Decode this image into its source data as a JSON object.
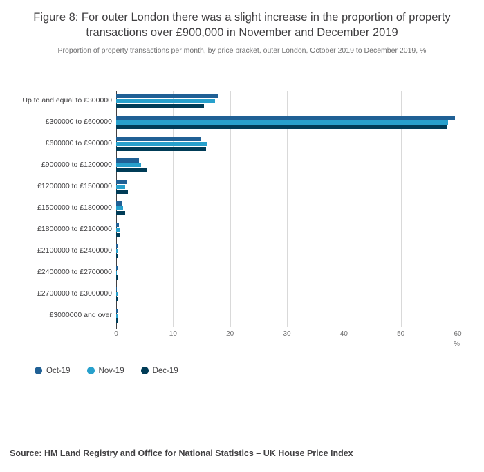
{
  "title": "Figure 8: For outer London there was a slight increase in the proportion of property transactions over £900,000 in November and December 2019",
  "subtitle": "Proportion of property transactions per month, by price bracket, outer London, October 2019 to December 2019, %",
  "source": "Source: HM Land Registry and Office for National Statistics – UK House Price Index",
  "chart_data": {
    "type": "bar",
    "orientation": "horizontal",
    "title": "Figure 8: For outer London there was a slight increase in the proportion of property transactions over £900,000 in November and December 2019",
    "subtitle": "Proportion of property transactions per month, by price bracket, outer London, October 2019 to December 2019, %",
    "categories": [
      "Up to and equal to £300000",
      "£300000 to £600000",
      "£600000 to £900000",
      "£900000 to £1200000",
      "£1200000 to £1500000",
      "£1500000 to £1800000",
      "£1800000 to £2100000",
      "£2100000 to £2400000",
      "£2400000 to £2700000",
      "£2700000 to £3000000",
      "£3000000 and over"
    ],
    "series": [
      {
        "name": "Oct-19",
        "color": "#206095",
        "values": [
          17.9,
          59.5,
          14.8,
          4.0,
          1.8,
          1.0,
          0.5,
          0.3,
          0.2,
          0.1,
          0.2
        ]
      },
      {
        "name": "Nov-19",
        "color": "#27a0cc",
        "values": [
          17.4,
          58.3,
          15.9,
          4.4,
          1.6,
          1.2,
          0.6,
          0.4,
          0.1,
          0.2,
          0.3
        ]
      },
      {
        "name": "Dec-19",
        "color": "#003c57",
        "values": [
          15.4,
          58.1,
          15.8,
          5.5,
          2.1,
          1.6,
          0.7,
          0.3,
          0.2,
          0.4,
          0.2
        ]
      }
    ],
    "xlabel": "%",
    "ylabel": "",
    "xlim": [
      0,
      60
    ],
    "xticks": [
      0,
      10,
      20,
      30,
      40,
      50,
      60
    ],
    "grid": true,
    "legend_position": "bottom"
  }
}
